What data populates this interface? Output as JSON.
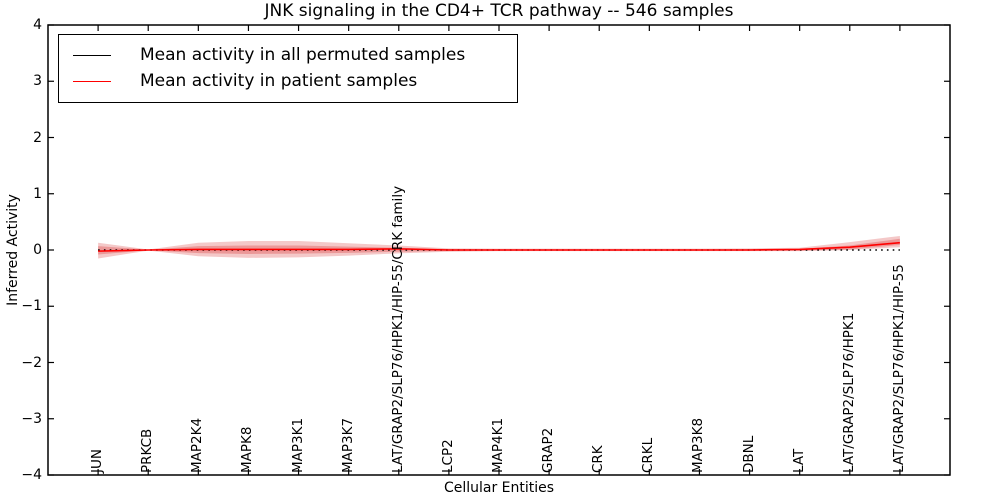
{
  "chart_data": {
    "type": "line",
    "title": "JNK signaling in the CD4+ TCR pathway -- 546 samples",
    "xlabel": "Cellular Entities",
    "ylabel": "Inferred Activity",
    "ylim": [
      -4,
      4
    ],
    "grid": false,
    "legend_position": "upper left",
    "ytick_labels": [
      "4",
      "3",
      "2",
      "1",
      "0",
      "−1",
      "−2",
      "−3",
      "−4"
    ],
    "ytick_values": [
      4,
      3,
      2,
      1,
      0,
      -1,
      -2,
      -3,
      -4
    ],
    "categories": [
      "JUN",
      "PRKCB",
      "MAP2K4",
      "MAPK8",
      "MAP3K1",
      "MAP3K7",
      "LAT/GRAP2/SLP76/HPK1/HIP-55/CRK family",
      "LCP2",
      "MAP4K1",
      "GRAP2",
      "CRK",
      "CRKL",
      "MAP3K8",
      "DBNL",
      "LAT",
      "LAT/GRAP2/SLP76/HPK1",
      "LAT/GRAP2/SLP76/HPK1/HIP-55"
    ],
    "series": [
      {
        "name": "Mean activity in all permuted samples",
        "color": "#000000",
        "line_style": "dotted",
        "values": [
          0,
          0,
          0,
          0,
          0,
          0,
          0,
          0,
          0,
          0,
          0,
          0,
          0,
          0,
          0,
          0,
          0
        ]
      },
      {
        "name": "Mean activity in patient samples",
        "color": "#ff0000",
        "line_style": "solid",
        "values": [
          -0.02,
          0,
          0.01,
          0.01,
          0.01,
          0.01,
          0.02,
          0,
          0,
          0,
          0,
          0,
          0,
          0,
          0.01,
          0.05,
          0.13
        ]
      }
    ],
    "bands": [
      {
        "name": "patient-sample-spread-outer",
        "color": "#d93a3a",
        "opacity": 0.28,
        "upper": [
          0.13,
          0.01,
          0.13,
          0.16,
          0.16,
          0.12,
          0.08,
          0.03,
          0.025,
          0.025,
          0.025,
          0.025,
          0.025,
          0.03,
          0.04,
          0.14,
          0.25
        ],
        "lower": [
          -0.15,
          -0.01,
          -0.11,
          -0.14,
          -0.13,
          -0.1,
          -0.06,
          -0.03,
          -0.02,
          -0.02,
          -0.02,
          -0.02,
          -0.02,
          -0.02,
          -0.02,
          0.0,
          0.05
        ]
      },
      {
        "name": "patient-sample-spread-inner",
        "color": "#d93a3a",
        "opacity": 0.34,
        "upper": [
          0.07,
          0.005,
          0.07,
          0.08,
          0.08,
          0.06,
          0.04,
          0.015,
          0.012,
          0.012,
          0.012,
          0.012,
          0.012,
          0.015,
          0.02,
          0.08,
          0.2
        ],
        "lower": [
          -0.08,
          -0.005,
          -0.055,
          -0.07,
          -0.065,
          -0.05,
          -0.03,
          -0.015,
          -0.01,
          -0.01,
          -0.01,
          -0.01,
          -0.01,
          -0.01,
          -0.01,
          0.01,
          0.09
        ]
      }
    ]
  }
}
